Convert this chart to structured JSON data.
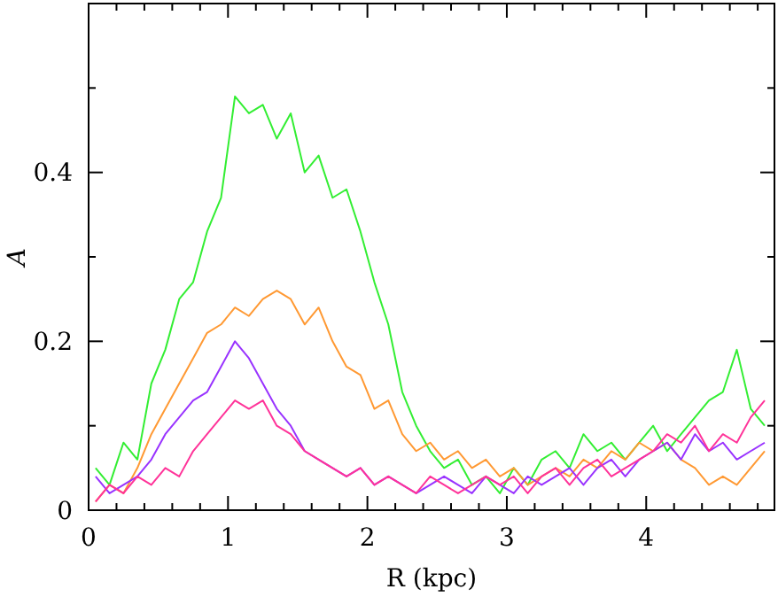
{
  "chart_data": {
    "type": "line",
    "xlabel": "R (kpc)",
    "ylabel": "A",
    "x": [
      0.05,
      0.15,
      0.25,
      0.35,
      0.45,
      0.55,
      0.65,
      0.75,
      0.85,
      0.95,
      1.05,
      1.15,
      1.25,
      1.35,
      1.45,
      1.55,
      1.65,
      1.75,
      1.85,
      1.95,
      2.05,
      2.15,
      2.25,
      2.35,
      2.45,
      2.55,
      2.65,
      2.75,
      2.85,
      2.95,
      3.05,
      3.15,
      3.25,
      3.35,
      3.45,
      3.55,
      3.65,
      3.75,
      3.85,
      3.95,
      4.05,
      4.15,
      4.25,
      4.35,
      4.45,
      4.55,
      4.65,
      4.75,
      4.85
    ],
    "series": [
      {
        "color": "#33ee33",
        "values": [
          0.05,
          0.03,
          0.08,
          0.06,
          0.15,
          0.19,
          0.25,
          0.27,
          0.33,
          0.37,
          0.49,
          0.47,
          0.48,
          0.44,
          0.47,
          0.4,
          0.42,
          0.37,
          0.38,
          0.33,
          0.27,
          0.22,
          0.14,
          0.1,
          0.07,
          0.05,
          0.06,
          0.03,
          0.04,
          0.02,
          0.05,
          0.03,
          0.06,
          0.07,
          0.05,
          0.09,
          0.07,
          0.08,
          0.06,
          0.08,
          0.1,
          0.07,
          0.09,
          0.11,
          0.13,
          0.14,
          0.19,
          0.12,
          0.1
        ]
      },
      {
        "color": "#ff9933",
        "values": [
          0.01,
          0.03,
          0.02,
          0.05,
          0.09,
          0.12,
          0.15,
          0.18,
          0.21,
          0.22,
          0.24,
          0.23,
          0.25,
          0.26,
          0.25,
          0.22,
          0.24,
          0.2,
          0.17,
          0.16,
          0.12,
          0.13,
          0.09,
          0.07,
          0.08,
          0.06,
          0.07,
          0.05,
          0.06,
          0.04,
          0.05,
          0.03,
          0.04,
          0.05,
          0.04,
          0.06,
          0.05,
          0.07,
          0.06,
          0.08,
          0.07,
          0.08,
          0.06,
          0.05,
          0.03,
          0.04,
          0.03,
          0.05,
          0.07
        ]
      },
      {
        "color": "#9933ff",
        "values": [
          0.04,
          0.02,
          0.03,
          0.04,
          0.06,
          0.09,
          0.11,
          0.13,
          0.14,
          0.17,
          0.2,
          0.18,
          0.15,
          0.12,
          0.1,
          0.07,
          0.06,
          0.05,
          0.04,
          0.05,
          0.03,
          0.04,
          0.03,
          0.02,
          0.03,
          0.04,
          0.03,
          0.02,
          0.04,
          0.03,
          0.02,
          0.04,
          0.03,
          0.04,
          0.05,
          0.03,
          0.05,
          0.06,
          0.04,
          0.06,
          0.07,
          0.08,
          0.06,
          0.09,
          0.07,
          0.08,
          0.06,
          0.07,
          0.08
        ]
      },
      {
        "color": "#ff3399",
        "values": [
          0.01,
          0.03,
          0.02,
          0.04,
          0.03,
          0.05,
          0.04,
          0.07,
          0.09,
          0.11,
          0.13,
          0.12,
          0.13,
          0.1,
          0.09,
          0.07,
          0.06,
          0.05,
          0.04,
          0.05,
          0.03,
          0.04,
          0.03,
          0.02,
          0.04,
          0.03,
          0.02,
          0.03,
          0.04,
          0.03,
          0.04,
          0.02,
          0.04,
          0.05,
          0.03,
          0.05,
          0.06,
          0.04,
          0.05,
          0.06,
          0.07,
          0.09,
          0.08,
          0.1,
          0.07,
          0.09,
          0.08,
          0.11,
          0.13
        ]
      }
    ],
    "xlim": [
      0,
      4.92
    ],
    "ylim": [
      0,
      0.6
    ],
    "xticks": [
      0,
      {
        "value": 0.2,
        "label": null
      },
      {
        "value": 0.4,
        "label": null
      },
      {
        "value": 0.6,
        "label": null
      },
      {
        "value": 0.8,
        "label": null
      },
      1,
      {
        "value": 1.2,
        "label": null
      },
      {
        "value": 1.4,
        "label": null
      },
      {
        "value": 1.6,
        "label": null
      },
      {
        "value": 1.8,
        "label": null
      },
      2,
      {
        "value": 2.2,
        "label": null
      },
      {
        "value": 2.4,
        "label": null
      },
      {
        "value": 2.6,
        "label": null
      },
      {
        "value": 2.8,
        "label": null
      },
      3,
      {
        "value": 3.2,
        "label": null
      },
      {
        "value": 3.4,
        "label": null
      },
      {
        "value": 3.6,
        "label": null
      },
      {
        "value": 3.8,
        "label": null
      },
      4,
      {
        "value": 4.2,
        "label": null
      },
      {
        "value": 4.4,
        "label": null
      },
      {
        "value": 4.6,
        "label": null
      },
      {
        "value": 4.8,
        "label": null
      }
    ],
    "yticks": [
      0,
      {
        "value": 0.1,
        "label": null
      },
      0.2,
      {
        "value": 0.3,
        "label": null
      },
      0.4,
      {
        "value": 0.5,
        "label": null
      }
    ],
    "grid": false,
    "marker": "none",
    "line_style": "solid"
  }
}
